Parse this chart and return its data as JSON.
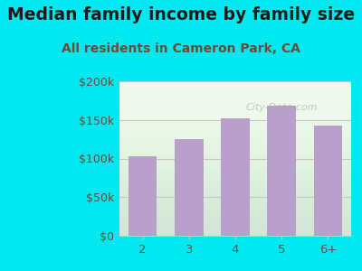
{
  "title": "Median family income by family size",
  "subtitle": "All residents in Cameron Park, CA",
  "categories": [
    "2",
    "3",
    "4",
    "5",
    "6+"
  ],
  "values": [
    103000,
    125000,
    152000,
    168000,
    143000
  ],
  "bar_color": "#b8a0cb",
  "background_outer": "#00e8f0",
  "background_inner_color": "#f2faf0",
  "title_color": "#1a1a1a",
  "subtitle_color": "#6b4c3b",
  "tick_label_color": "#6b4c3b",
  "grid_color": "#c8c8c8",
  "ylim": [
    0,
    200000
  ],
  "yticks": [
    0,
    50000,
    100000,
    150000,
    200000
  ],
  "ytick_labels": [
    "$0",
    "$50k",
    "$100k",
    "$150k",
    "$200k"
  ],
  "title_fontsize": 13.5,
  "subtitle_fontsize": 10,
  "watermark": "City-Data.com"
}
